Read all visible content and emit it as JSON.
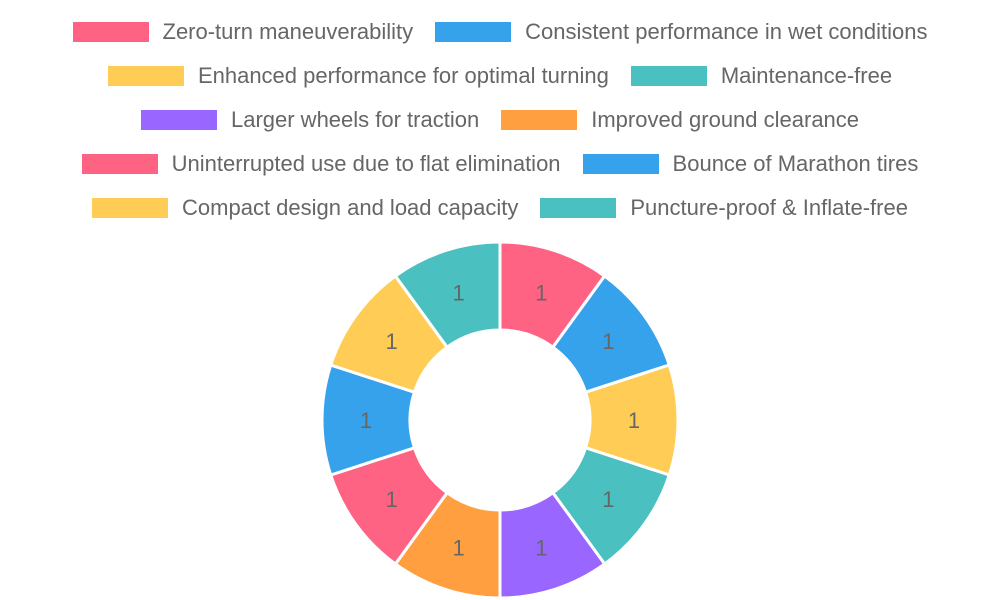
{
  "chart_data": {
    "type": "doughnut",
    "title": "",
    "categories": [
      "Zero-turn maneuverability",
      "Consistent performance in wet conditions",
      "Enhanced performance for optimal turning",
      "Maintenance-free",
      "Larger wheels for traction",
      "Improved ground clearance",
      "Uninterrupted use due to flat elimination",
      "Bounce of Marathon tires",
      "Compact design and load capacity",
      "Puncture-proof & Inflate-free"
    ],
    "values": [
      1,
      1,
      1,
      1,
      1,
      1,
      1,
      1,
      1,
      1
    ],
    "colors": [
      "#FF6384",
      "#36A2EB",
      "#FFCD56",
      "#4BC0C0",
      "#9966FF",
      "#FF9F40",
      "#FF6384",
      "#36A2EB",
      "#FFCD56",
      "#4BC0C0"
    ],
    "data_labels": [
      "1",
      "1",
      "1",
      "1",
      "1",
      "1",
      "1",
      "1",
      "1",
      "1"
    ],
    "legend_position": "top",
    "center": [
      500,
      420
    ],
    "outer_radius": 178,
    "inner_radius": 90
  },
  "legend": {
    "rows": [
      [
        0,
        1
      ],
      [
        2,
        3
      ],
      [
        4,
        5
      ],
      [
        6,
        7
      ],
      [
        8,
        9
      ]
    ]
  }
}
